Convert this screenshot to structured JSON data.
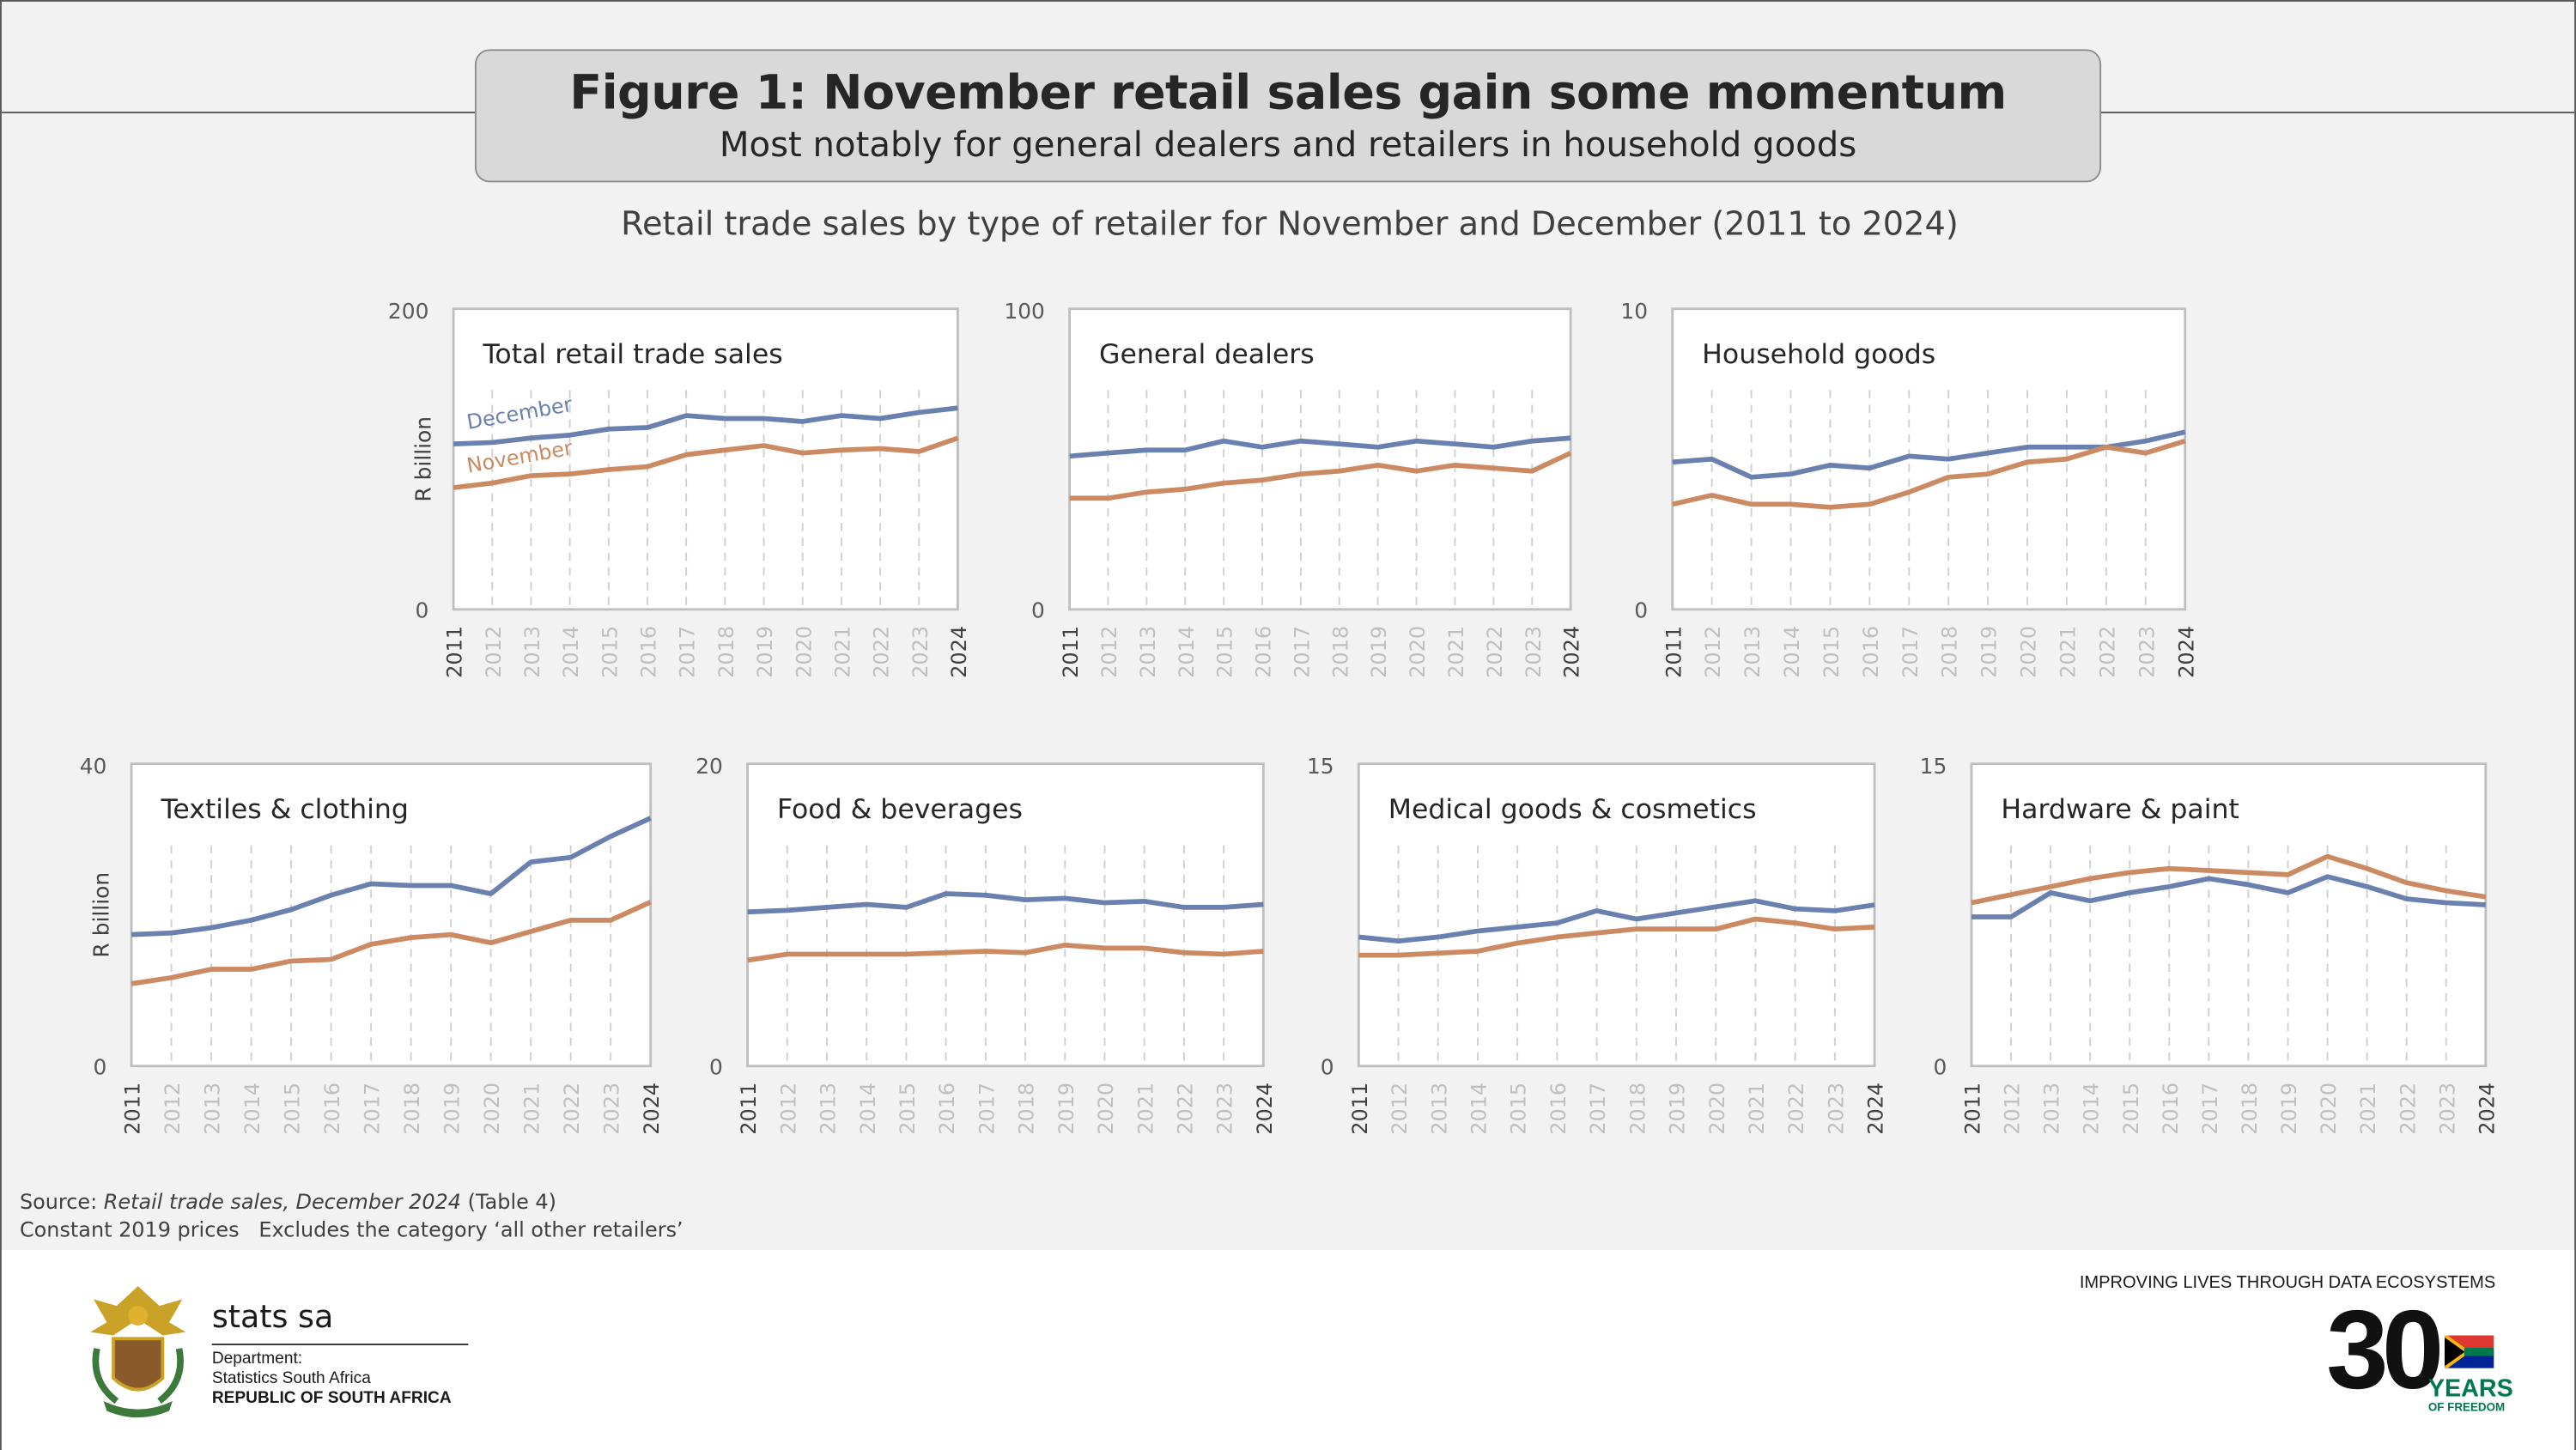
{
  "header": {
    "title": "Figure 1: November retail sales gain some momentum",
    "subtitle": "Most notably for general dealers and retailers in household goods"
  },
  "chart_heading": "Retail trade sales by type of retailer for November and December (2011 to 2024)",
  "colors": {
    "december": "#6a80ae",
    "november": "#cc8a62"
  },
  "chart_data": [
    {
      "type": "line",
      "title": "Total retail trade sales",
      "ylabel": "R billion",
      "ylim": [
        0,
        200
      ],
      "yticks": [
        "0",
        "200"
      ],
      "series_labels_shown": true,
      "x": [
        "2011",
        "2012",
        "2013",
        "2014",
        "2015",
        "2016",
        "2017",
        "2018",
        "2019",
        "2020",
        "2021",
        "2022",
        "2023",
        "2024"
      ],
      "series": [
        {
          "name": "December",
          "values": [
            110,
            111,
            114,
            116,
            120,
            121,
            129,
            127,
            127,
            125,
            129,
            127,
            131,
            134
          ]
        },
        {
          "name": "November",
          "values": [
            81,
            84,
            89,
            90,
            93,
            95,
            103,
            106,
            109,
            104,
            106,
            107,
            105,
            114
          ]
        }
      ]
    },
    {
      "type": "line",
      "title": "General dealers",
      "ylabel": "",
      "ylim": [
        0,
        100
      ],
      "yticks": [
        "0",
        "100"
      ],
      "series_labels_shown": false,
      "x": [
        "2011",
        "2012",
        "2013",
        "2014",
        "2015",
        "2016",
        "2017",
        "2018",
        "2019",
        "2020",
        "2021",
        "2022",
        "2023",
        "2024"
      ],
      "series": [
        {
          "name": "December",
          "values": [
            51,
            52,
            53,
            53,
            56,
            54,
            56,
            55,
            54,
            56,
            55,
            54,
            56,
            57
          ]
        },
        {
          "name": "November",
          "values": [
            37,
            37,
            39,
            40,
            42,
            43,
            45,
            46,
            48,
            46,
            48,
            47,
            46,
            52
          ]
        }
      ]
    },
    {
      "type": "line",
      "title": "Household goods",
      "ylabel": "",
      "ylim": [
        0,
        10
      ],
      "yticks": [
        "0",
        "10"
      ],
      "series_labels_shown": false,
      "x": [
        "2011",
        "2012",
        "2013",
        "2014",
        "2015",
        "2016",
        "2017",
        "2018",
        "2019",
        "2020",
        "2021",
        "2022",
        "2023",
        "2024"
      ],
      "series": [
        {
          "name": "December",
          "values": [
            4.9,
            5.0,
            4.4,
            4.5,
            4.8,
            4.7,
            5.1,
            5.0,
            5.2,
            5.4,
            5.4,
            5.4,
            5.6,
            5.9
          ]
        },
        {
          "name": "November",
          "values": [
            3.5,
            3.8,
            3.5,
            3.5,
            3.4,
            3.5,
            3.9,
            4.4,
            4.5,
            4.9,
            5.0,
            5.4,
            5.2,
            5.6
          ]
        }
      ]
    },
    {
      "type": "line",
      "title": "Textiles & clothing",
      "ylabel": "R billion",
      "ylim": [
        0,
        40
      ],
      "yticks": [
        "0",
        "40"
      ],
      "series_labels_shown": false,
      "x": [
        "2011",
        "2012",
        "2013",
        "2014",
        "2015",
        "2016",
        "2017",
        "2018",
        "2019",
        "2020",
        "2021",
        "2022",
        "2023",
        "2024"
      ],
      "series": [
        {
          "name": "December",
          "values": [
            17.4,
            17.6,
            18.3,
            19.3,
            20.7,
            22.6,
            24.1,
            23.9,
            23.9,
            22.8,
            27.0,
            27.6,
            30.4,
            32.8
          ]
        },
        {
          "name": "November",
          "values": [
            10.9,
            11.7,
            12.8,
            12.8,
            13.9,
            14.1,
            16.1,
            17.0,
            17.4,
            16.3,
            17.8,
            19.3,
            19.3,
            21.7
          ]
        }
      ]
    },
    {
      "type": "line",
      "title": "Food & beverages",
      "ylabel": "",
      "ylim": [
        0,
        20
      ],
      "yticks": [
        "0",
        "20"
      ],
      "series_labels_shown": false,
      "x": [
        "2011",
        "2012",
        "2013",
        "2014",
        "2015",
        "2016",
        "2017",
        "2018",
        "2019",
        "2020",
        "2021",
        "2022",
        "2023",
        "2024"
      ],
      "series": [
        {
          "name": "December",
          "values": [
            10.2,
            10.3,
            10.5,
            10.7,
            10.5,
            11.4,
            11.3,
            11.0,
            11.1,
            10.8,
            10.9,
            10.5,
            10.5,
            10.7
          ]
        },
        {
          "name": "November",
          "values": [
            7.0,
            7.4,
            7.4,
            7.4,
            7.4,
            7.5,
            7.6,
            7.5,
            8.0,
            7.8,
            7.8,
            7.5,
            7.4,
            7.6
          ]
        }
      ]
    },
    {
      "type": "line",
      "title": "Medical goods & cosmetics",
      "ylabel": "",
      "ylim": [
        0,
        15
      ],
      "yticks": [
        "0",
        "15"
      ],
      "series_labels_shown": false,
      "x": [
        "2011",
        "2012",
        "2013",
        "2014",
        "2015",
        "2016",
        "2017",
        "2018",
        "2019",
        "2020",
        "2021",
        "2022",
        "2023",
        "2024"
      ],
      "series": [
        {
          "name": "December",
          "values": [
            6.4,
            6.2,
            6.4,
            6.7,
            6.9,
            7.1,
            7.7,
            7.3,
            7.6,
            7.9,
            8.2,
            7.8,
            7.7,
            8.0
          ]
        },
        {
          "name": "November",
          "values": [
            5.5,
            5.5,
            5.6,
            5.7,
            6.1,
            6.4,
            6.6,
            6.8,
            6.8,
            6.8,
            7.3,
            7.1,
            6.8,
            6.9
          ]
        }
      ]
    },
    {
      "type": "line",
      "title": "Hardware & paint",
      "ylabel": "",
      "ylim": [
        0,
        15
      ],
      "yticks": [
        "0",
        "15"
      ],
      "series_labels_shown": false,
      "x": [
        "2011",
        "2012",
        "2013",
        "2014",
        "2015",
        "2016",
        "2017",
        "2018",
        "2019",
        "2020",
        "2021",
        "2022",
        "2023",
        "2024"
      ],
      "series": [
        {
          "name": "December",
          "values": [
            7.4,
            7.4,
            8.6,
            8.2,
            8.6,
            8.9,
            9.3,
            9.0,
            8.6,
            9.4,
            8.9,
            8.3,
            8.1,
            8.0
          ]
        },
        {
          "name": "November",
          "values": [
            8.1,
            8.5,
            8.9,
            9.3,
            9.6,
            9.8,
            9.7,
            9.6,
            9.5,
            10.4,
            9.8,
            9.1,
            8.7,
            8.4
          ]
        }
      ]
    }
  ],
  "source": {
    "prefix": "Source: ",
    "publication": "Retail trade sales, December 2024",
    "suffix": " (Table 4)",
    "notes": "Constant 2019 prices   Excludes the category ‘all other retailers’"
  },
  "footer": {
    "brand": "stats sa",
    "dept_line1": "Department:",
    "dept_line2": "Statistics South Africa",
    "dept_line3": "REPUBLIC OF SOUTH AFRICA",
    "tagline": "IMPROVING LIVES THROUGH DATA ECOSYSTEMS",
    "anniversary_number": "30",
    "anniversary_years": "YEARS",
    "anniversary_sub": "OF FREEDOM"
  }
}
